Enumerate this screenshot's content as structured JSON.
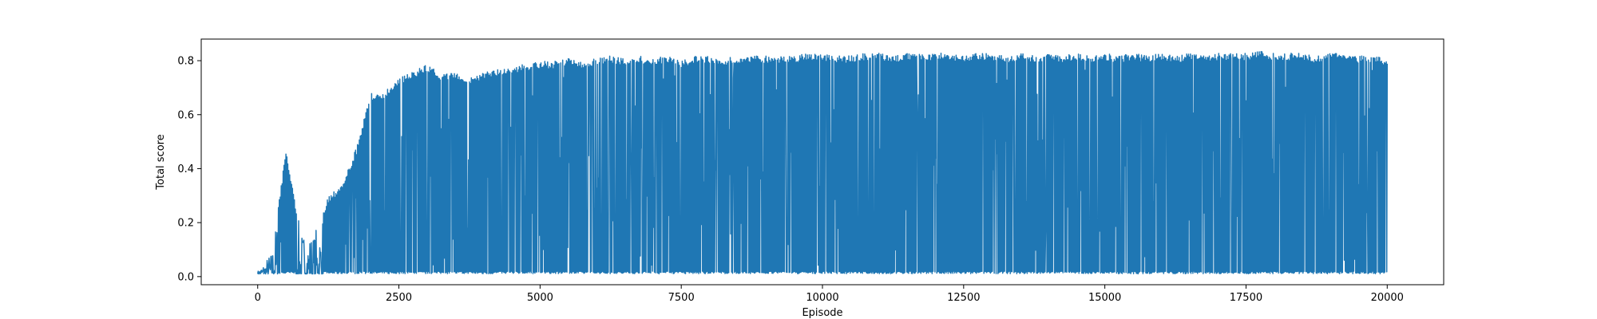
{
  "chart_data": {
    "type": "line",
    "xlabel": "Episode",
    "ylabel": "Total score",
    "xlim": [
      -1000,
      21000
    ],
    "ylim": [
      -0.03,
      0.88
    ],
    "xticks": [
      0,
      2500,
      5000,
      7500,
      10000,
      12500,
      15000,
      17500,
      20000
    ],
    "xtick_labels": [
      "0",
      "2500",
      "5000",
      "7500",
      "10000",
      "12500",
      "15000",
      "17500",
      "20000"
    ],
    "yticks": [
      0.0,
      0.2,
      0.4,
      0.6,
      0.8
    ],
    "ytick_labels": [
      "0.0",
      "0.2",
      "0.4",
      "0.6",
      "0.8"
    ],
    "grid": false,
    "legend": "none",
    "series_color": "#1f77b4",
    "series": [
      {
        "x": [
          0,
          250,
          500,
          750,
          1000,
          1250,
          1500,
          1750,
          2000,
          2250,
          2500,
          2750,
          3000,
          3250,
          3500,
          3750,
          4000,
          4250,
          4500,
          4750,
          5000,
          5250,
          5500,
          5750,
          6000,
          6250,
          6500,
          6750,
          7000,
          7250,
          7500,
          7750,
          8000,
          8250,
          8500,
          8750,
          9000,
          9250,
          9500,
          9750,
          10000,
          10250,
          10500,
          10750,
          11000,
          11250,
          11500,
          11750,
          12000,
          12250,
          12500,
          12750,
          13000,
          13250,
          13500,
          13750,
          14000,
          14250,
          14500,
          14750,
          15000,
          15250,
          15500,
          15750,
          16000,
          16250,
          16500,
          16750,
          17000,
          17250,
          17500,
          17750,
          18000,
          18250,
          18500,
          18750,
          19000,
          19250,
          19500,
          19750,
          20000
        ],
        "y_min": [
          0.01,
          0.01,
          0.01,
          0.01,
          0.01,
          0.01,
          0.01,
          0.01,
          0.01,
          0.01,
          0.01,
          0.01,
          0.01,
          0.01,
          0.01,
          0.01,
          0.01,
          0.01,
          0.01,
          0.01,
          0.01,
          0.01,
          0.01,
          0.01,
          0.01,
          0.01,
          0.01,
          0.01,
          0.01,
          0.01,
          0.01,
          0.01,
          0.01,
          0.01,
          0.01,
          0.01,
          0.01,
          0.01,
          0.01,
          0.01,
          0.01,
          0.01,
          0.01,
          0.01,
          0.01,
          0.01,
          0.01,
          0.01,
          0.01,
          0.01,
          0.01,
          0.01,
          0.01,
          0.01,
          0.01,
          0.01,
          0.01,
          0.01,
          0.01,
          0.01,
          0.01,
          0.01,
          0.01,
          0.01,
          0.01,
          0.01,
          0.01,
          0.01,
          0.01,
          0.01,
          0.01,
          0.01,
          0.01,
          0.01,
          0.01,
          0.01,
          0.01,
          0.01,
          0.01,
          0.01,
          0.01
        ],
        "y_max": [
          0.02,
          0.1,
          0.47,
          0.18,
          0.17,
          0.3,
          0.35,
          0.48,
          0.68,
          0.69,
          0.74,
          0.76,
          0.79,
          0.75,
          0.76,
          0.74,
          0.76,
          0.77,
          0.78,
          0.79,
          0.8,
          0.8,
          0.81,
          0.8,
          0.81,
          0.82,
          0.81,
          0.82,
          0.81,
          0.82,
          0.8,
          0.82,
          0.82,
          0.81,
          0.82,
          0.82,
          0.82,
          0.82,
          0.82,
          0.83,
          0.83,
          0.82,
          0.82,
          0.83,
          0.83,
          0.82,
          0.83,
          0.83,
          0.83,
          0.83,
          0.82,
          0.83,
          0.83,
          0.82,
          0.83,
          0.82,
          0.83,
          0.82,
          0.83,
          0.82,
          0.83,
          0.82,
          0.83,
          0.82,
          0.83,
          0.82,
          0.83,
          0.82,
          0.83,
          0.83,
          0.83,
          0.84,
          0.83,
          0.83,
          0.83,
          0.82,
          0.83,
          0.83,
          0.82,
          0.82,
          0.81
        ]
      }
    ]
  }
}
